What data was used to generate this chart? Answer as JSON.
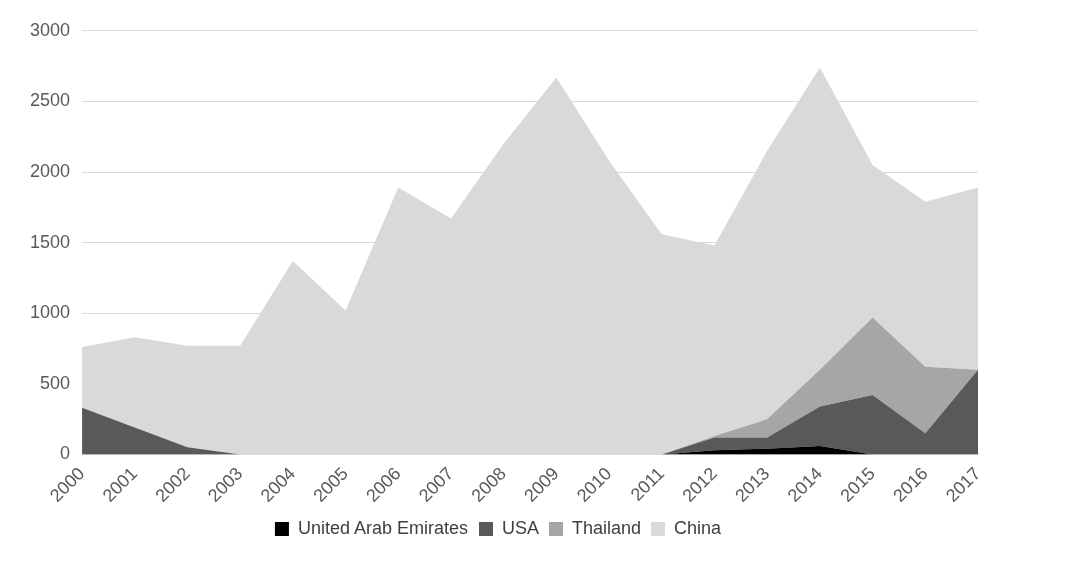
{
  "chart_data": {
    "type": "area",
    "stacked": true,
    "categories": [
      "2000",
      "2001",
      "2002",
      "2003",
      "2004",
      "2005",
      "2006",
      "2007",
      "2008",
      "2009",
      "2010",
      "2011",
      "2012",
      "2013",
      "2014",
      "2015",
      "2016",
      "2017"
    ],
    "series": [
      {
        "name": "United Arab Emirates",
        "color": "#000000",
        "values": [
          0,
          0,
          0,
          0,
          0,
          0,
          0,
          0,
          0,
          0,
          0,
          0,
          30,
          40,
          60,
          0,
          0,
          0
        ]
      },
      {
        "name": "USA",
        "color": "#595959",
        "values": [
          330,
          190,
          50,
          0,
          0,
          0,
          0,
          0,
          0,
          0,
          0,
          0,
          90,
          80,
          280,
          420,
          150,
          600
        ]
      },
      {
        "name": "Thailand",
        "color": "#a6a6a6",
        "values": [
          0,
          0,
          0,
          0,
          0,
          0,
          0,
          0,
          0,
          0,
          0,
          0,
          10,
          130,
          260,
          550,
          470,
          0
        ]
      },
      {
        "name": "China",
        "color": "#d9d9d9",
        "values": [
          430,
          640,
          720,
          770,
          1370,
          1020,
          1890,
          1670,
          2200,
          2670,
          2080,
          1560,
          1350,
          1900,
          2140,
          1080,
          1170,
          1290
        ]
      }
    ],
    "ylim": [
      0,
      3000
    ],
    "yticks": [
      0,
      500,
      1000,
      1500,
      2000,
      2500,
      3000
    ],
    "grid": "y",
    "legend": "bottom"
  }
}
